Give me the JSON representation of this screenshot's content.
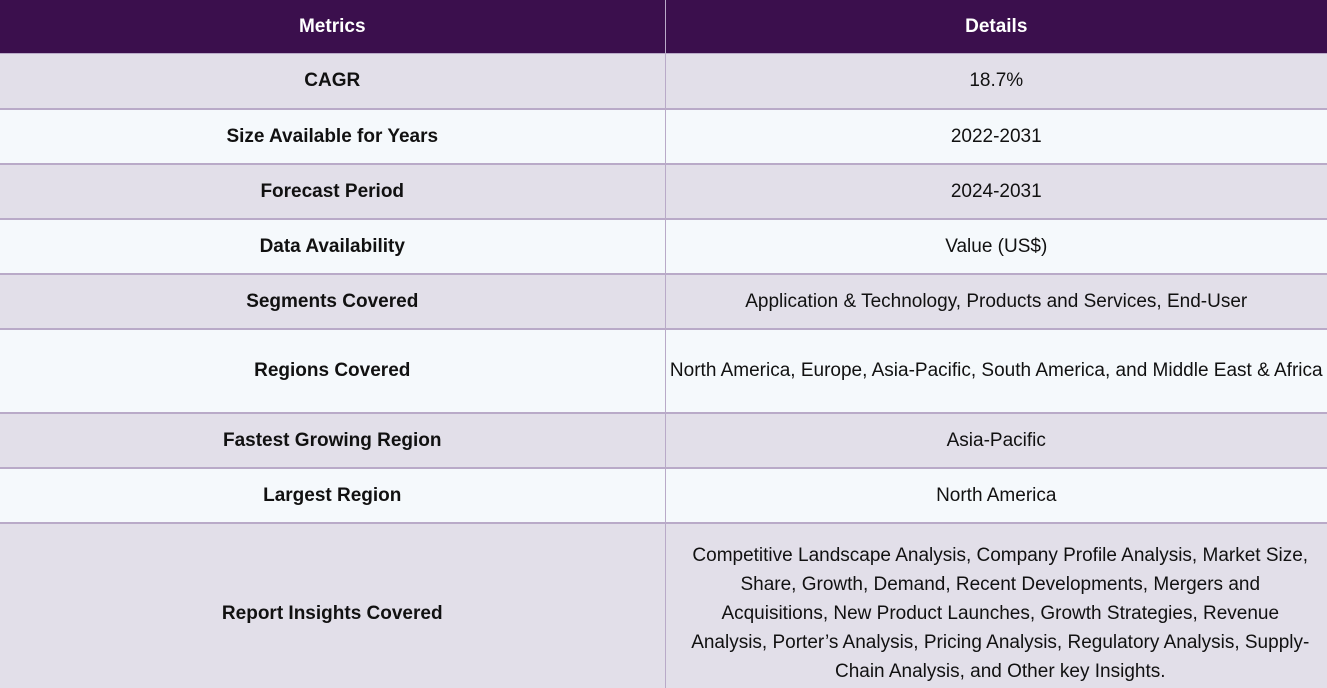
{
  "table": {
    "headers": {
      "metrics": "Metrics",
      "details": "Details"
    },
    "rows": [
      {
        "metric": "CAGR",
        "detail": "18.7%"
      },
      {
        "metric": "Size Available for Years",
        "detail": "2022-2031"
      },
      {
        "metric": "Forecast Period",
        "detail": "2024-2031"
      },
      {
        "metric": "Data Availability",
        "detail": "Value (US$)"
      },
      {
        "metric": "Segments Covered",
        "detail": "Application & Technology, Products and Services, End-User"
      },
      {
        "metric": "Regions Covered",
        "detail": "North America, Europe, Asia-Pacific, South America, and Middle East & Africa"
      },
      {
        "metric": "Fastest Growing Region",
        "detail": "Asia-Pacific"
      },
      {
        "metric": "Largest Region",
        "detail": "North America"
      },
      {
        "metric": "Report Insights Covered",
        "detail": "Competitive Landscape Analysis, Company Profile Analysis, Market Size, Share, Growth, Demand, Recent Developments, Mergers and Acquisitions, New Product Launches, Growth Strategies, Revenue Analysis, Porter’s Analysis, Pricing Analysis, Regulatory Analysis, Supply-Chain Analysis, and Other key Insights."
      }
    ]
  },
  "colors": {
    "header_background": "#3b0f4d",
    "header_text": "#ffffff",
    "row_shaded": "#e2dfe9",
    "row_light": "#f5f9fc",
    "grid_line": "#b9aac8"
  }
}
